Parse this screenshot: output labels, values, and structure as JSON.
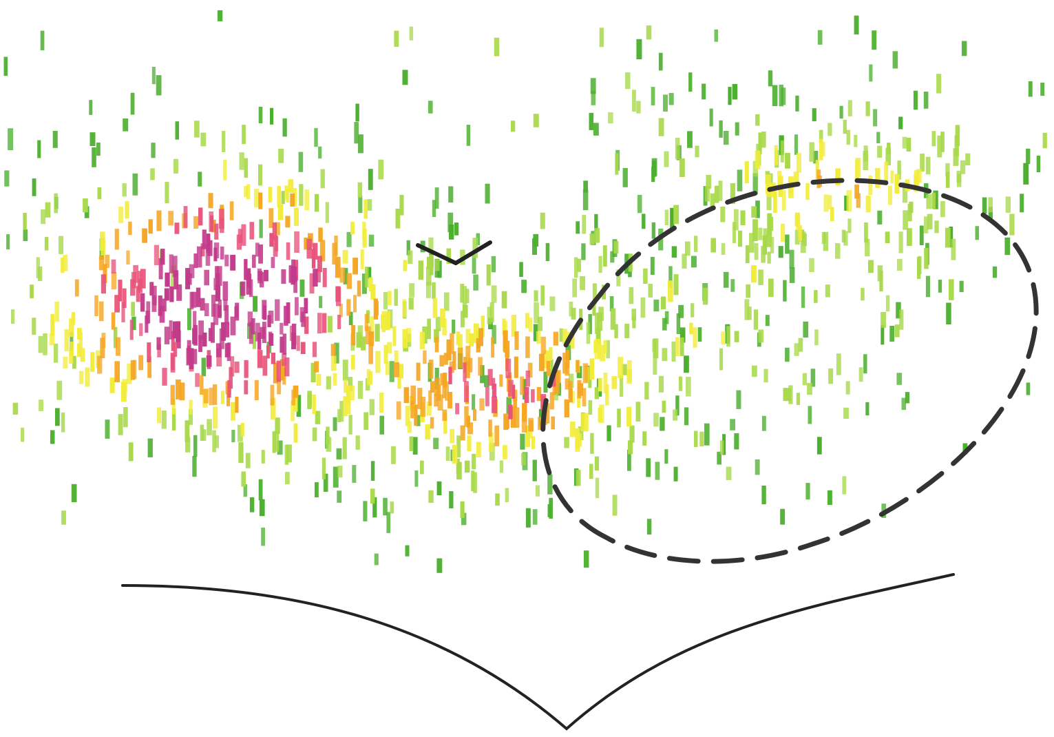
{
  "figure": {
    "description_visible_text": [],
    "marker_palette": {
      "low": "#4caf2f",
      "mid_low": "#a8d94a",
      "mid": "#f2ec3a",
      "mid_high": "#f5a623",
      "high": "#e8527a",
      "peak": "#c23a8a"
    },
    "outline_color": "#222222",
    "dashed_region_color": "#333333",
    "background": "#ffffff"
  }
}
